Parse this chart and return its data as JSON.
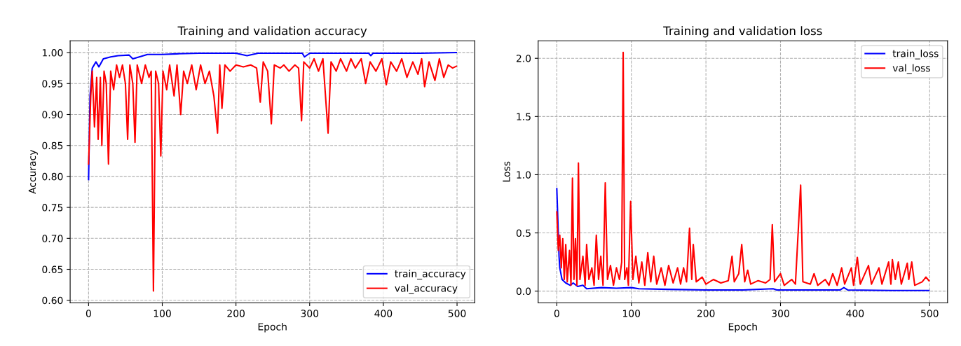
{
  "chart_data": [
    {
      "type": "line",
      "title": "Training and validation accuracy",
      "xlabel": "Epoch",
      "ylabel": "Accuracy",
      "xlim": [
        -25,
        524
      ],
      "ylim": [
        0.596,
        1.019
      ],
      "xticks": [
        0,
        100,
        200,
        300,
        400,
        500
      ],
      "yticks": [
        {
          "value": 0.6,
          "label": "0.60"
        },
        {
          "value": 0.65,
          "label": "0.65"
        },
        {
          "value": 0.7,
          "label": "0.70"
        },
        {
          "value": 0.75,
          "label": "0.75"
        },
        {
          "value": 0.8,
          "label": "0.80"
        },
        {
          "value": 0.85,
          "label": "0.85"
        },
        {
          "value": 0.9,
          "label": "0.90"
        },
        {
          "value": 0.95,
          "label": "0.95"
        },
        {
          "value": 1.0,
          "label": "1.00"
        }
      ],
      "grid": true,
      "legend": "lower right",
      "series": [
        {
          "name": "train_accuracy",
          "color": "#0000ff",
          "x": [
            0,
            2,
            5,
            10,
            14,
            20,
            30,
            40,
            55,
            60,
            80,
            100,
            120,
            150,
            200,
            215,
            230,
            290,
            293,
            300,
            380,
            383,
            386,
            450,
            499
          ],
          "values": [
            0.795,
            0.93,
            0.975,
            0.985,
            0.977,
            0.99,
            0.993,
            0.995,
            0.996,
            0.99,
            0.997,
            0.997,
            0.998,
            0.999,
            0.999,
            0.995,
            0.999,
            0.999,
            0.993,
            0.999,
            0.999,
            0.995,
            0.999,
            0.999,
            1.0
          ]
        },
        {
          "name": "val_accuracy",
          "color": "#ff0000",
          "x": [
            0,
            3,
            5,
            8,
            11,
            13,
            16,
            18,
            21,
            24,
            27,
            30,
            34,
            38,
            42,
            46,
            50,
            53,
            56,
            60,
            63,
            66,
            72,
            77,
            82,
            85,
            88,
            91,
            95,
            98,
            101,
            106,
            110,
            116,
            120,
            125,
            129,
            134,
            140,
            146,
            152,
            158,
            164,
            170,
            175,
            178,
            181,
            185,
            192,
            200,
            210,
            220,
            228,
            233,
            237,
            243,
            248,
            252,
            260,
            265,
            272,
            280,
            285,
            289,
            292,
            300,
            306,
            312,
            318,
            325,
            329,
            336,
            342,
            350,
            356,
            362,
            370,
            376,
            382,
            390,
            398,
            404,
            410,
            418,
            425,
            432,
            440,
            447,
            452,
            456,
            462,
            470,
            476,
            482,
            488,
            494,
            499
          ],
          "values": [
            0.82,
            0.93,
            0.97,
            0.88,
            0.96,
            0.86,
            0.96,
            0.85,
            0.97,
            0.95,
            0.82,
            0.97,
            0.94,
            0.98,
            0.96,
            0.98,
            0.95,
            0.86,
            0.98,
            0.95,
            0.855,
            0.98,
            0.95,
            0.98,
            0.96,
            0.97,
            0.615,
            0.97,
            0.95,
            0.833,
            0.97,
            0.94,
            0.98,
            0.93,
            0.98,
            0.9,
            0.97,
            0.95,
            0.98,
            0.94,
            0.98,
            0.95,
            0.97,
            0.93,
            0.87,
            0.98,
            0.91,
            0.98,
            0.97,
            0.98,
            0.977,
            0.98,
            0.975,
            0.92,
            0.985,
            0.97,
            0.885,
            0.98,
            0.975,
            0.98,
            0.97,
            0.98,
            0.975,
            0.89,
            0.985,
            0.975,
            0.99,
            0.97,
            0.99,
            0.87,
            0.985,
            0.97,
            0.99,
            0.97,
            0.99,
            0.975,
            0.99,
            0.95,
            0.985,
            0.97,
            0.99,
            0.948,
            0.985,
            0.97,
            0.99,
            0.96,
            0.985,
            0.965,
            0.99,
            0.945,
            0.985,
            0.955,
            0.99,
            0.96,
            0.98,
            0.975,
            0.978
          ]
        }
      ]
    },
    {
      "type": "line",
      "title": "Training and validation loss",
      "xlabel": "Epoch",
      "ylabel": "Loss",
      "xlim": [
        -25,
        524
      ],
      "ylim": [
        -0.1,
        2.15
      ],
      "xticks": [
        0,
        100,
        200,
        300,
        400,
        500
      ],
      "yticks": [
        {
          "value": 0.0,
          "label": "0.0"
        },
        {
          "value": 0.5,
          "label": "0.5"
        },
        {
          "value": 1.0,
          "label": "1.0"
        },
        {
          "value": 1.5,
          "label": "1.5"
        },
        {
          "value": 2.0,
          "label": "2.0"
        }
      ],
      "grid": true,
      "legend": "upper right",
      "series": [
        {
          "name": "train_loss",
          "color": "#0000ff",
          "x": [
            0,
            3,
            4,
            7,
            12,
            18,
            22,
            28,
            35,
            40,
            60,
            80,
            100,
            110,
            150,
            200,
            250,
            290,
            295,
            380,
            385,
            390,
            450,
            499
          ],
          "values": [
            0.88,
            0.3,
            0.2,
            0.1,
            0.07,
            0.05,
            0.07,
            0.04,
            0.05,
            0.02,
            0.03,
            0.025,
            0.03,
            0.02,
            0.015,
            0.01,
            0.01,
            0.02,
            0.01,
            0.01,
            0.03,
            0.01,
            0.005,
            0.005
          ]
        },
        {
          "name": "val_loss",
          "color": "#ff0000",
          "x": [
            0,
            2,
            4,
            6,
            8,
            10,
            12,
            14,
            17,
            19,
            21,
            23,
            25,
            27,
            29,
            31,
            35,
            38,
            40,
            43,
            47,
            50,
            53,
            56,
            59,
            62,
            65,
            68,
            72,
            76,
            80,
            84,
            87,
            89,
            91,
            94,
            96,
            99,
            102,
            106,
            110,
            114,
            118,
            122,
            126,
            130,
            134,
            140,
            145,
            150,
            156,
            162,
            166,
            170,
            174,
            178,
            181,
            183,
            187,
            195,
            200,
            210,
            220,
            230,
            235,
            238,
            244,
            248,
            252,
            256,
            260,
            270,
            280,
            286,
            289,
            292,
            300,
            305,
            315,
            320,
            327,
            330,
            340,
            345,
            350,
            360,
            365,
            370,
            376,
            382,
            386,
            395,
            398,
            403,
            407,
            418,
            422,
            432,
            436,
            445,
            448,
            450,
            454,
            458,
            462,
            470,
            472,
            476,
            480,
            490,
            495,
            499
          ],
          "values": [
            0.68,
            0.35,
            0.48,
            0.2,
            0.45,
            0.1,
            0.4,
            0.08,
            0.35,
            0.05,
            0.97,
            0.1,
            0.45,
            0.05,
            1.1,
            0.1,
            0.3,
            0.05,
            0.4,
            0.1,
            0.2,
            0.05,
            0.48,
            0.1,
            0.3,
            0.05,
            0.93,
            0.1,
            0.22,
            0.05,
            0.2,
            0.1,
            0.25,
            2.05,
            0.1,
            0.2,
            0.05,
            0.77,
            0.1,
            0.3,
            0.07,
            0.25,
            0.05,
            0.33,
            0.08,
            0.3,
            0.06,
            0.2,
            0.05,
            0.22,
            0.07,
            0.2,
            0.06,
            0.2,
            0.08,
            0.54,
            0.1,
            0.4,
            0.08,
            0.12,
            0.06,
            0.1,
            0.07,
            0.09,
            0.3,
            0.08,
            0.15,
            0.4,
            0.08,
            0.18,
            0.06,
            0.09,
            0.07,
            0.1,
            0.57,
            0.08,
            0.15,
            0.05,
            0.1,
            0.06,
            0.91,
            0.08,
            0.06,
            0.15,
            0.05,
            0.1,
            0.05,
            0.15,
            0.05,
            0.2,
            0.06,
            0.2,
            0.05,
            0.29,
            0.06,
            0.22,
            0.06,
            0.2,
            0.06,
            0.25,
            0.06,
            0.27,
            0.1,
            0.25,
            0.06,
            0.24,
            0.1,
            0.25,
            0.05,
            0.08,
            0.12,
            0.09
          ]
        }
      ]
    }
  ]
}
